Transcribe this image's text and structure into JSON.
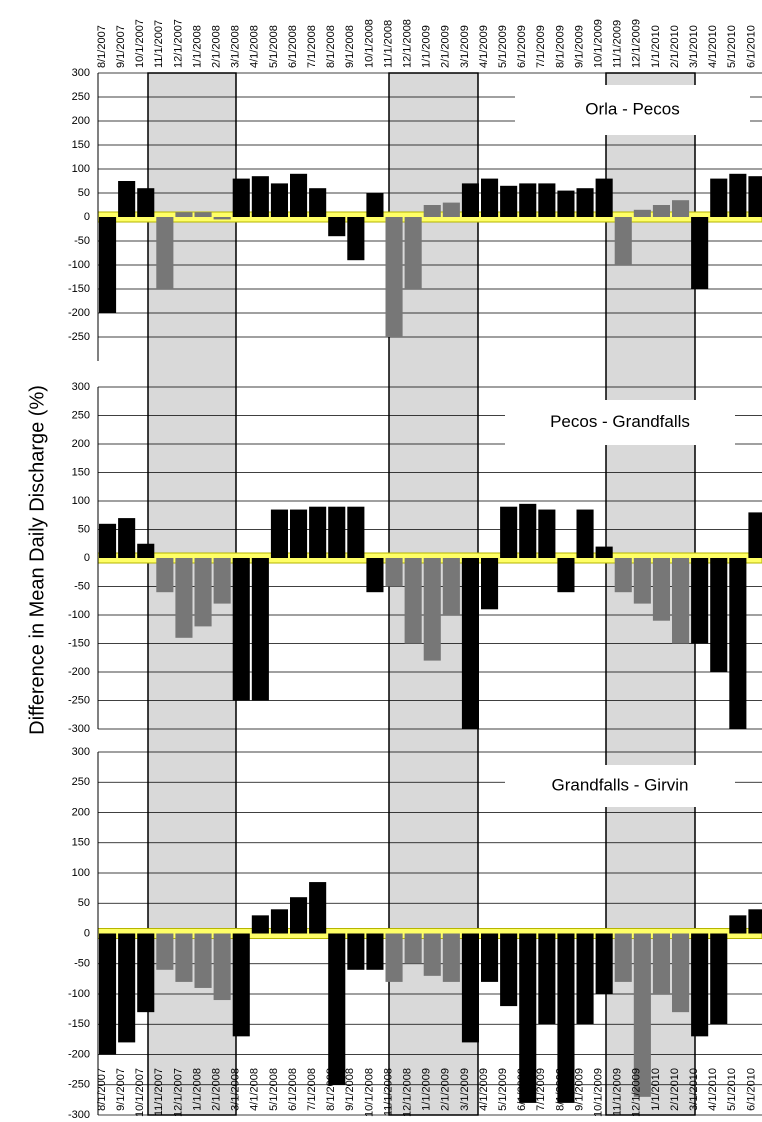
{
  "chart_data": [
    {
      "type": "bar",
      "title": "Orla - Pecos",
      "categories": [
        "8/1/2007",
        "9/1/2007",
        "10/1/2007",
        "11/1/2007",
        "12/1/2007",
        "1/1/2008",
        "2/1/2008",
        "3/1/2008",
        "4/1/2008",
        "5/1/2008",
        "6/1/2008",
        "7/1/2008",
        "8/1/2008",
        "9/1/2008",
        "10/1/2008",
        "11/1/2008",
        "12/1/2008",
        "1/1/2009",
        "2/1/2009",
        "3/1/2009",
        "4/1/2009",
        "5/1/2009",
        "6/1/2009",
        "7/1/2009",
        "8/1/2009",
        "9/1/2009",
        "10/1/2009",
        "11/1/2009",
        "12/1/2009",
        "1/1/2010",
        "2/1/2010",
        "3/1/2010",
        "4/1/2010",
        "5/1/2010",
        "6/1/2010"
      ],
      "values": [
        -200,
        75,
        60,
        -150,
        10,
        10,
        -5,
        80,
        85,
        70,
        90,
        60,
        -40,
        -90,
        50,
        -250,
        -150,
        25,
        30,
        70,
        80,
        65,
        70,
        70,
        55,
        60,
        80,
        -100,
        15,
        25,
        35,
        -150,
        80,
        90,
        85
      ],
      "colors": [
        "#000",
        "#000",
        "#000",
        "#777",
        "#777",
        "#777",
        "#777",
        "#000",
        "#000",
        "#000",
        "#000",
        "#000",
        "#000",
        "#000",
        "#000",
        "#777",
        "#777",
        "#777",
        "#777",
        "#000",
        "#000",
        "#000",
        "#000",
        "#000",
        "#000",
        "#000",
        "#000",
        "#777",
        "#777",
        "#777",
        "#777",
        "#000",
        "#000",
        "#000",
        "#000"
      ],
      "ylim": [
        -300,
        300
      ],
      "yticks": [
        300,
        250,
        200,
        150,
        100,
        50,
        0,
        -50,
        -100,
        -150,
        -200,
        -250
      ],
      "grid": true
    },
    {
      "type": "bar",
      "title": "Pecos - Grandfalls",
      "ylabel": "Difference in Mean Daily Discharge (%)",
      "values": [
        60,
        70,
        25,
        -60,
        -140,
        -120,
        -80,
        -250,
        -250,
        85,
        85,
        90,
        90,
        90,
        -60,
        -50,
        -150,
        -180,
        -100,
        -300,
        -90,
        90,
        95,
        85,
        -60,
        85,
        20,
        -60,
        -80,
        -110,
        -150,
        -150,
        -200,
        -300,
        80
      ],
      "colors": [
        "#000",
        "#000",
        "#000",
        "#777",
        "#777",
        "#777",
        "#777",
        "#000",
        "#000",
        "#000",
        "#000",
        "#000",
        "#000",
        "#000",
        "#000",
        "#777",
        "#777",
        "#777",
        "#777",
        "#000",
        "#000",
        "#000",
        "#000",
        "#000",
        "#000",
        "#000",
        "#000",
        "#777",
        "#777",
        "#777",
        "#777",
        "#000",
        "#000",
        "#000",
        "#000"
      ],
      "ylim": [
        -300,
        300
      ],
      "yticks": [
        300,
        250,
        200,
        150,
        100,
        50,
        0,
        -50,
        -100,
        -150,
        -200,
        -250,
        -300
      ],
      "grid": true
    },
    {
      "type": "bar",
      "title": "Grandfalls - Girvin",
      "categories": [
        "8/1/2007",
        "9/1/2007",
        "10/1/2007",
        "11/1/2007",
        "12/1/2007",
        "1/1/2008",
        "2/1/2008",
        "3/1/2008",
        "4/1/2008",
        "5/1/2008",
        "6/1/2008",
        "7/1/2008",
        "8/1/2008",
        "9/1/2008",
        "10/1/2008",
        "11/1/2008",
        "12/1/2008",
        "1/1/2009",
        "2/1/2009",
        "3/1/2009",
        "4/1/2009",
        "5/1/2009",
        "6/1/2009",
        "7/1/2009",
        "8/1/2009",
        "9/1/2009",
        "10/1/2009",
        "11/1/2009",
        "12/1/2009",
        "1/1/2010",
        "2/1/2010",
        "3/1/2010",
        "4/1/2010",
        "5/1/2010",
        "6/1/2010"
      ],
      "values": [
        -200,
        -180,
        -130,
        -60,
        -80,
        -90,
        -110,
        -170,
        30,
        40,
        60,
        85,
        -250,
        -60,
        -60,
        -80,
        -50,
        -70,
        -80,
        -180,
        -80,
        -120,
        -280,
        -150,
        -280,
        -150,
        -100,
        -80,
        -270,
        -100,
        -130,
        -170,
        -150,
        30,
        40
      ],
      "colors": [
        "#000",
        "#000",
        "#000",
        "#777",
        "#777",
        "#777",
        "#777",
        "#000",
        "#000",
        "#000",
        "#000",
        "#000",
        "#000",
        "#000",
        "#000",
        "#777",
        "#777",
        "#777",
        "#777",
        "#000",
        "#000",
        "#000",
        "#000",
        "#000",
        "#000",
        "#000",
        "#000",
        "#777",
        "#777",
        "#777",
        "#777",
        "#000",
        "#000",
        "#000",
        "#000"
      ],
      "ylim": [
        -300,
        300
      ],
      "yticks": [
        300,
        250,
        200,
        150,
        100,
        50,
        0,
        -50,
        -100,
        -150,
        -200,
        -250,
        -300
      ],
      "grid": true
    }
  ]
}
